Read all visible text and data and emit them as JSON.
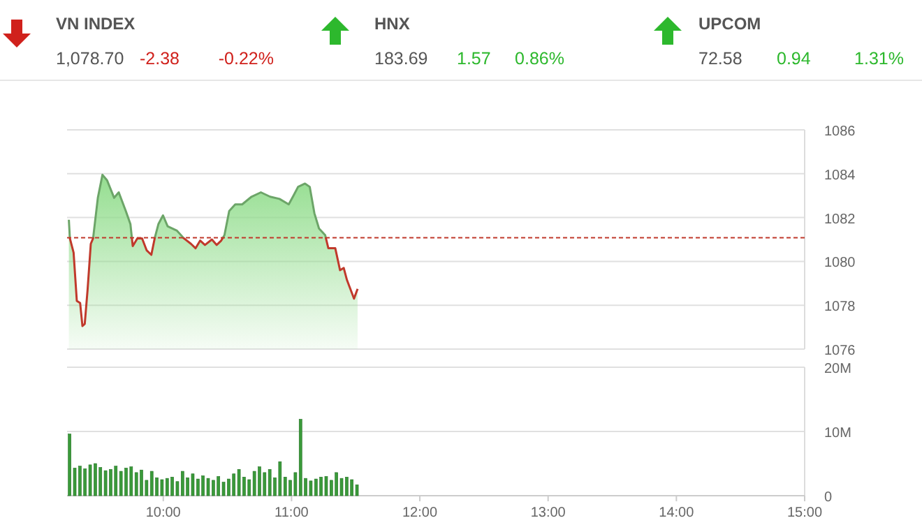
{
  "chart_data": [
    {
      "type": "other",
      "categories": [
        "VN INDEX",
        "HNX",
        "UPCOM"
      ],
      "series": [
        {
          "values": [
            1078.7,
            183.69,
            72.58
          ],
          "value_labels": [
            "1,078.70",
            "183.69",
            "72.58"
          ],
          "color": "#555555"
        },
        {
          "values": [
            -2.38,
            1.57,
            0.94
          ],
          "value_labels": [
            "-2.38",
            "1.57",
            "0.94"
          ],
          "colors": [
            "#d0211c",
            "#2db82d",
            "#2db82d"
          ]
        },
        {
          "values": [
            -0.22,
            0.86,
            1.31
          ],
          "value_labels": [
            "-0.22%",
            "0.86%",
            "1.31%"
          ],
          "colors": [
            "#d0211c",
            "#2db82d",
            "#2db82d"
          ]
        }
      ]
    },
    {
      "type": "area",
      "x": [
        9.264,
        9.272,
        9.301,
        9.326,
        9.352,
        9.37,
        9.388,
        9.41,
        9.435,
        9.453,
        9.49,
        9.526,
        9.562,
        9.617,
        9.653,
        9.708,
        9.744,
        9.762,
        9.798,
        9.835,
        9.871,
        9.907,
        9.933,
        9.962,
        9.998,
        10.034,
        10.107,
        10.161,
        10.216,
        10.252,
        10.288,
        10.325,
        10.379,
        10.416,
        10.452,
        10.477,
        10.514,
        10.561,
        10.615,
        10.688,
        10.761,
        10.833,
        10.906,
        10.978,
        11.015,
        11.051,
        11.105,
        11.142,
        11.178,
        11.214,
        11.262,
        11.287,
        11.341,
        11.378,
        11.407,
        11.432,
        11.487,
        11.515
      ],
      "series": [
        {
          "color": "#8fdc8a",
          "values": [
            1081.9,
            1081.05,
            1080.4,
            1078.2,
            1078.1,
            1077.05,
            1077.15,
            1078.7,
            1080.8,
            1081.05,
            1082.9,
            1083.95,
            1083.7,
            1082.9,
            1083.15,
            1082.3,
            1081.7,
            1080.7,
            1081.05,
            1081.05,
            1080.5,
            1080.3,
            1081.05,
            1081.7,
            1082.1,
            1081.6,
            1081.4,
            1081.05,
            1080.8,
            1080.6,
            1080.95,
            1080.75,
            1081.0,
            1080.75,
            1080.95,
            1081.2,
            1082.3,
            1082.6,
            1082.6,
            1082.95,
            1083.15,
            1082.95,
            1082.85,
            1082.6,
            1083.0,
            1083.4,
            1083.55,
            1083.4,
            1082.2,
            1081.5,
            1081.2,
            1080.6,
            1080.6,
            1079.6,
            1079.7,
            1079.15,
            1078.3,
            1078.75
          ]
        }
      ],
      "xlim": [
        9.25,
        15
      ],
      "ylim": [
        1076,
        1086
      ],
      "yticks": [
        1076,
        1078,
        1080,
        1082,
        1084,
        1086
      ],
      "grid": "y",
      "tick_labels": "y",
      "ref_lines": [
        {
          "axis": "y",
          "value": 1081.08,
          "color": "#c0392b",
          "line_style": "dashed"
        }
      ]
    },
    {
      "type": "bar",
      "x": [
        9.27,
        9.31,
        9.35,
        9.39,
        9.43,
        9.47,
        9.51,
        9.55,
        9.59,
        9.63,
        9.67,
        9.71,
        9.75,
        9.79,
        9.83,
        9.87,
        9.91,
        9.95,
        9.99,
        10.03,
        10.07,
        10.11,
        10.15,
        10.19,
        10.23,
        10.27,
        10.31,
        10.35,
        10.39,
        10.43,
        10.47,
        10.51,
        10.55,
        10.59,
        10.63,
        10.67,
        10.71,
        10.75,
        10.79,
        10.83,
        10.87,
        10.91,
        10.95,
        10.99,
        11.03,
        11.07,
        11.11,
        11.15,
        11.19,
        11.23,
        11.27,
        11.31,
        11.35,
        11.39,
        11.43,
        11.47,
        11.51
      ],
      "values": [
        9.6,
        4.3,
        4.6,
        4.2,
        4.8,
        5.0,
        4.4,
        3.9,
        4.1,
        4.6,
        3.8,
        4.3,
        4.5,
        3.6,
        4.0,
        2.4,
        3.8,
        2.8,
        2.5,
        2.7,
        2.9,
        2.2,
        3.8,
        2.8,
        3.4,
        2.6,
        3.1,
        2.7,
        2.4,
        3.0,
        2.1,
        2.6,
        3.4,
        4.1,
        2.9,
        2.5,
        3.8,
        4.5,
        3.6,
        4.1,
        2.8,
        5.3,
        2.9,
        2.4,
        3.6,
        11.9,
        2.7,
        2.3,
        2.6,
        2.9,
        3.0,
        2.4,
        3.6,
        2.7,
        2.9,
        2.5,
        1.7
      ],
      "color": "#3a9a3a",
      "xlim": [
        9.25,
        15
      ],
      "xticks": [
        {
          "value": 10,
          "label": "10:00"
        },
        {
          "value": 11,
          "label": "11:00"
        },
        {
          "value": 12,
          "label": "12:00"
        },
        {
          "value": 13,
          "label": "13:00"
        },
        {
          "value": 14,
          "label": "14:00"
        },
        {
          "value": 15,
          "label": "15:00"
        }
      ],
      "ylim": [
        0,
        20
      ],
      "yticks": [
        0,
        {
          "value": 10,
          "label": "10M"
        },
        {
          "value": 20,
          "label": "20M"
        }
      ],
      "grid": "y"
    }
  ]
}
